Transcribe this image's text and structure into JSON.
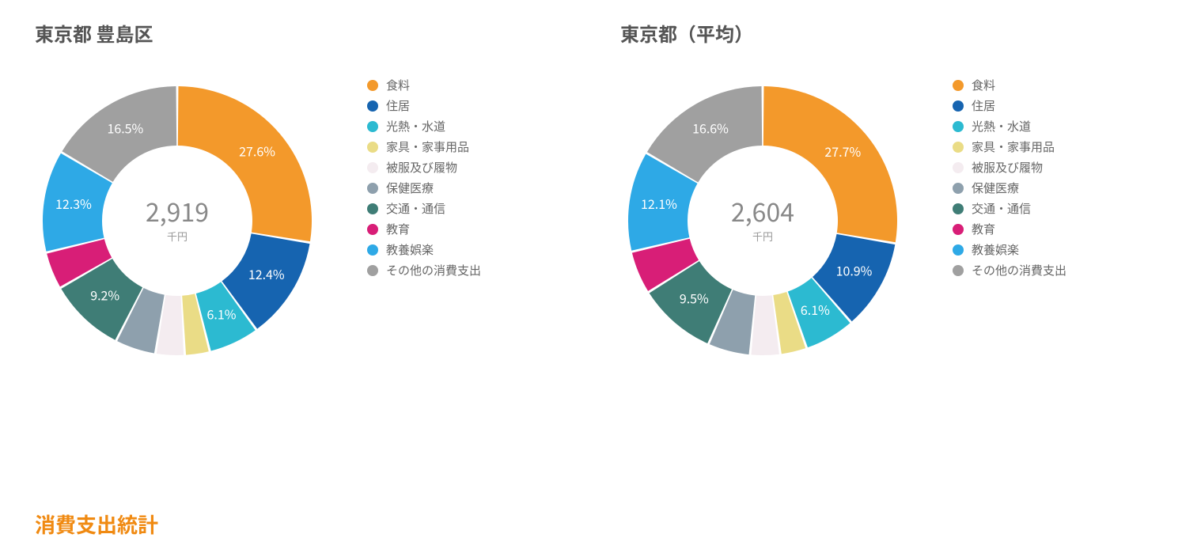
{
  "section_title": "消費支出統計",
  "legend_categories": [
    {
      "key": "food",
      "label": "食料",
      "color": "#f3992b"
    },
    {
      "key": "housing",
      "label": "住居",
      "color": "#1664b0"
    },
    {
      "key": "utilities",
      "label": "光熱・水道",
      "color": "#2cbad1"
    },
    {
      "key": "furniture",
      "label": "家具・家事用品",
      "color": "#eadc86"
    },
    {
      "key": "clothing",
      "label": "被服及び履物",
      "color": "#f4ecf0"
    },
    {
      "key": "medical",
      "label": "保健医療",
      "color": "#8ea0ad"
    },
    {
      "key": "transport",
      "label": "交通・通信",
      "color": "#3f7d76"
    },
    {
      "key": "education",
      "label": "教育",
      "color": "#d81e77"
    },
    {
      "key": "recreation",
      "label": "教養娯楽",
      "color": "#2ea9e6"
    },
    {
      "key": "other",
      "label": "その他の消費支出",
      "color": "#a0a0a0"
    }
  ],
  "charts": [
    {
      "id": "toshima",
      "title": "東京都 豊島区",
      "center_value": "2,919",
      "center_unit": "千円",
      "slices": [
        {
          "key": "food",
          "value": 27.6,
          "label": "27.6%",
          "show": true
        },
        {
          "key": "housing",
          "value": 12.4,
          "label": "12.4%",
          "show": true
        },
        {
          "key": "utilities",
          "value": 6.1,
          "label": "6.1%",
          "show": true
        },
        {
          "key": "furniture",
          "value": 3.0,
          "label": "",
          "show": false
        },
        {
          "key": "clothing",
          "value": 3.5,
          "label": "",
          "show": false
        },
        {
          "key": "medical",
          "value": 4.9,
          "label": "",
          "show": false
        },
        {
          "key": "transport",
          "value": 9.2,
          "label": "9.2%",
          "show": true
        },
        {
          "key": "education",
          "value": 4.5,
          "label": "",
          "show": false
        },
        {
          "key": "recreation",
          "value": 12.3,
          "label": "12.3%",
          "show": true
        },
        {
          "key": "other",
          "value": 16.5,
          "label": "16.5%",
          "show": true
        }
      ]
    },
    {
      "id": "tokyo-avg",
      "title": "東京都（平均）",
      "center_value": "2,604",
      "center_unit": "千円",
      "slices": [
        {
          "key": "food",
          "value": 27.7,
          "label": "27.7%",
          "show": true
        },
        {
          "key": "housing",
          "value": 10.9,
          "label": "10.9%",
          "show": true
        },
        {
          "key": "utilities",
          "value": 6.1,
          "label": "6.1%",
          "show": true
        },
        {
          "key": "furniture",
          "value": 3.2,
          "label": "",
          "show": false
        },
        {
          "key": "clothing",
          "value": 3.6,
          "label": "",
          "show": false
        },
        {
          "key": "medical",
          "value": 5.1,
          "label": "",
          "show": false
        },
        {
          "key": "transport",
          "value": 9.5,
          "label": "9.5%",
          "show": true
        },
        {
          "key": "education",
          "value": 5.2,
          "label": "",
          "show": false
        },
        {
          "key": "recreation",
          "value": 12.1,
          "label": "12.1%",
          "show": true
        },
        {
          "key": "other",
          "value": 16.6,
          "label": "16.6%",
          "show": true
        }
      ]
    }
  ],
  "chart_style": {
    "type": "donut",
    "outer_radius": 170,
    "inner_radius": 95,
    "gap_deg": 1.0,
    "background_color": "#ffffff",
    "label_color": "#ffffff",
    "label_fontsize": 16,
    "title_fontsize": 24,
    "title_color": "#555555",
    "center_value_fontsize": 32,
    "center_value_color": "#888888",
    "center_unit_fontsize": 13,
    "legend_fontsize": 15,
    "legend_text_color": "#666666",
    "section_title_color": "#f08a12",
    "section_title_fontsize": 26
  }
}
